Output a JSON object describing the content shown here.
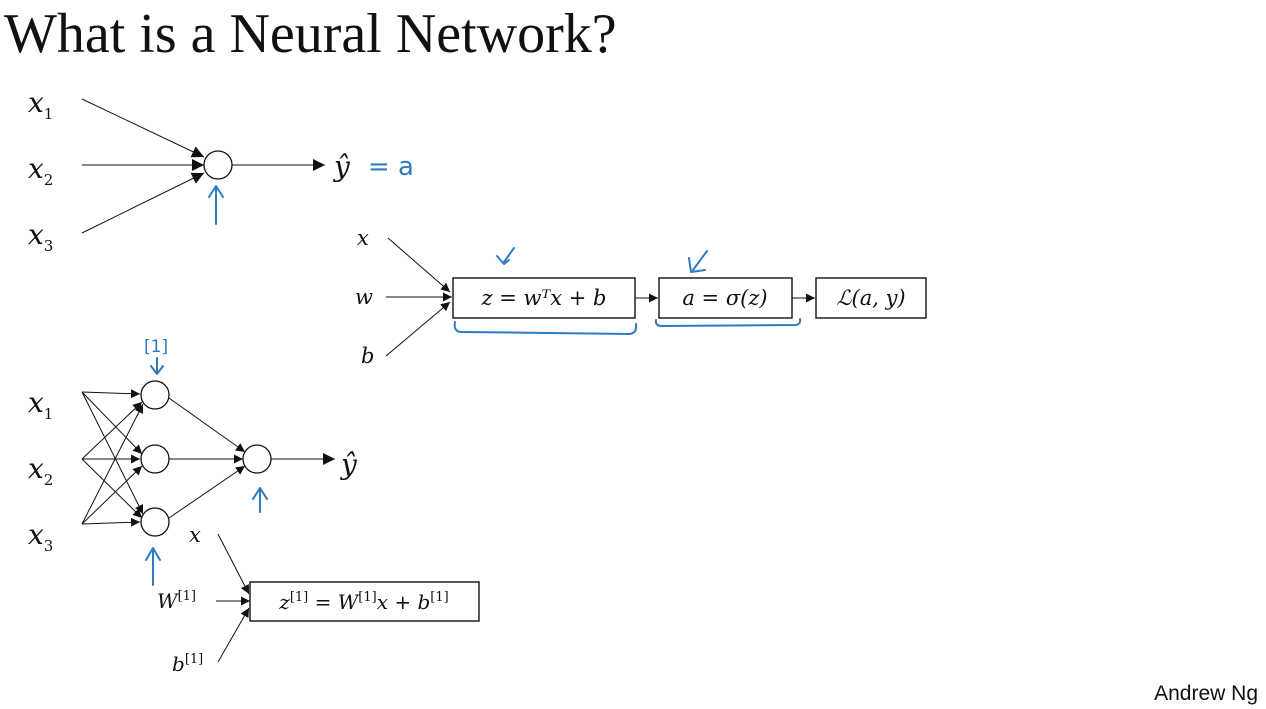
{
  "slide": {
    "title": "What is a Neural Network?",
    "author": "Andrew Ng"
  },
  "single_neuron": {
    "inputs": [
      {
        "base": "x",
        "sub": "1"
      },
      {
        "base": "x",
        "sub": "2"
      },
      {
        "base": "x",
        "sub": "3"
      }
    ],
    "output": "ŷ",
    "annotation": "= a"
  },
  "logistic_graph": {
    "inputs": [
      "x",
      "w",
      "b"
    ],
    "box_z": "z = wᵀx + b",
    "box_a": "a = σ(z)",
    "box_loss": "ℒ(a, y)"
  },
  "two_layer": {
    "inputs": [
      {
        "base": "x",
        "sub": "1"
      },
      {
        "base": "x",
        "sub": "2"
      },
      {
        "base": "x",
        "sub": "3"
      }
    ],
    "output": "ŷ",
    "layer_annotation": "[1]"
  },
  "layer_graph": {
    "input_x": "x",
    "input_W": {
      "base": "W",
      "sup": "[1]"
    },
    "input_b": {
      "base": "b",
      "sup": "[1]"
    },
    "box_z": {
      "z": "z",
      "z_sup": "[1]",
      "eq": " = W",
      "W_sup": "[1]",
      "mid": "x + b",
      "b_sup": "[1]"
    }
  }
}
